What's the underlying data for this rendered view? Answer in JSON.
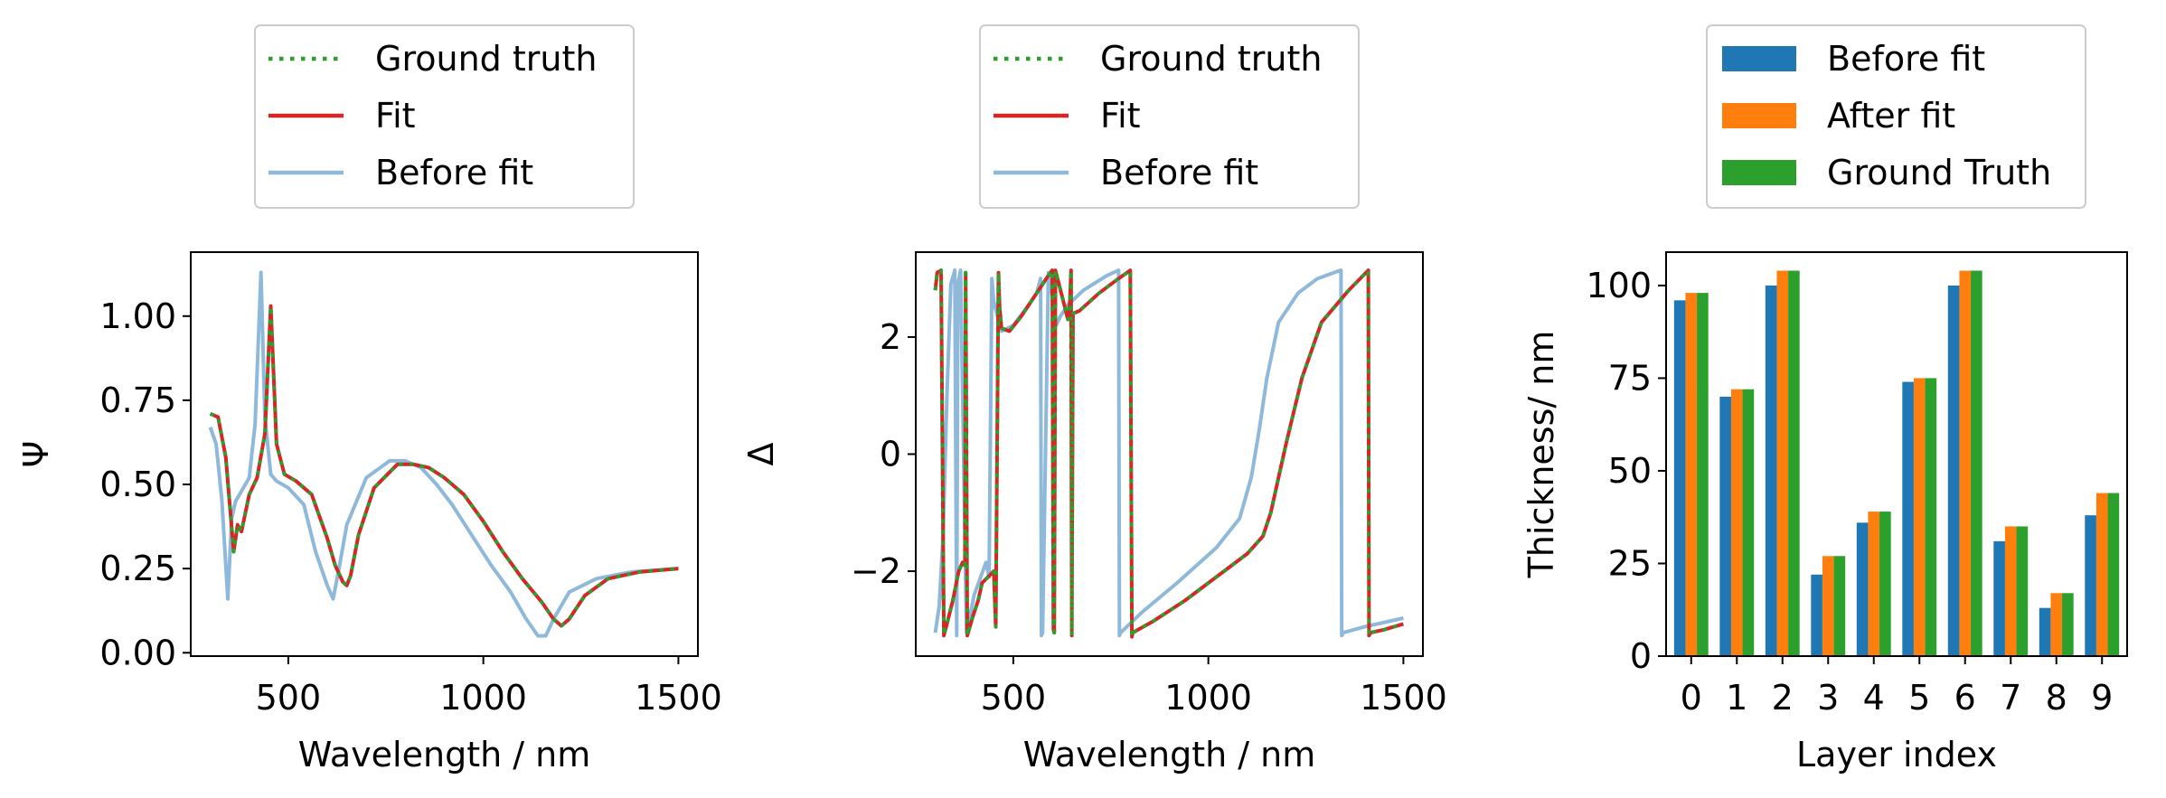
{
  "chart_data": [
    {
      "type": "line",
      "title": "",
      "xlabel": "Wavelength / nm",
      "ylabel": "Ψ",
      "xlim": [
        250,
        1550
      ],
      "ylim": [
        -0.01,
        1.19
      ],
      "xticks": [
        500,
        1000,
        1500
      ],
      "yticks": [
        0.0,
        0.25,
        0.5,
        0.75,
        1.0
      ],
      "ytick_labels": [
        "0.00",
        "0.25",
        "0.50",
        "0.75",
        "1.00"
      ],
      "legend": {
        "placement": "above",
        "entries": [
          "Ground truth",
          "Fit",
          "Before fit"
        ]
      },
      "series": [
        {
          "name": "Ground truth",
          "color": "#2ca02c",
          "style": "dotted",
          "x": [
            300,
            320,
            340,
            360,
            370,
            380,
            400,
            420,
            440,
            455,
            470,
            490,
            520,
            560,
            600,
            620,
            640,
            650,
            660,
            680,
            720,
            780,
            820,
            860,
            900,
            950,
            1000,
            1050,
            1100,
            1150,
            1180,
            1200,
            1220,
            1260,
            1320,
            1400,
            1500
          ],
          "y": [
            0.71,
            0.7,
            0.58,
            0.3,
            0.38,
            0.36,
            0.47,
            0.52,
            0.65,
            1.03,
            0.62,
            0.53,
            0.51,
            0.47,
            0.34,
            0.26,
            0.21,
            0.2,
            0.23,
            0.35,
            0.49,
            0.56,
            0.56,
            0.55,
            0.52,
            0.47,
            0.39,
            0.3,
            0.22,
            0.15,
            0.1,
            0.08,
            0.1,
            0.17,
            0.22,
            0.24,
            0.25
          ]
        },
        {
          "name": "Fit",
          "color": "#d62728",
          "style": "solid",
          "x": [
            300,
            320,
            340,
            360,
            370,
            380,
            400,
            420,
            440,
            455,
            470,
            490,
            520,
            560,
            600,
            620,
            640,
            650,
            660,
            680,
            720,
            780,
            820,
            860,
            900,
            950,
            1000,
            1050,
            1100,
            1150,
            1180,
            1200,
            1220,
            1260,
            1320,
            1400,
            1500
          ],
          "y": [
            0.71,
            0.7,
            0.58,
            0.3,
            0.38,
            0.36,
            0.47,
            0.52,
            0.65,
            1.03,
            0.62,
            0.53,
            0.51,
            0.47,
            0.34,
            0.26,
            0.21,
            0.2,
            0.23,
            0.35,
            0.49,
            0.56,
            0.56,
            0.55,
            0.52,
            0.47,
            0.39,
            0.3,
            0.22,
            0.15,
            0.1,
            0.08,
            0.1,
            0.17,
            0.22,
            0.24,
            0.25
          ]
        },
        {
          "name": "Before fit",
          "color": "#8fb9da",
          "style": "solid",
          "x": [
            300,
            315,
            330,
            345,
            355,
            365,
            380,
            400,
            415,
            430,
            440,
            455,
            470,
            500,
            540,
            570,
            600,
            615,
            630,
            650,
            700,
            760,
            800,
            840,
            880,
            920,
            970,
            1020,
            1070,
            1110,
            1140,
            1160,
            1180,
            1220,
            1290,
            1380,
            1500
          ],
          "y": [
            0.67,
            0.62,
            0.45,
            0.16,
            0.4,
            0.45,
            0.48,
            0.52,
            0.68,
            1.13,
            0.7,
            0.53,
            0.51,
            0.49,
            0.44,
            0.3,
            0.2,
            0.16,
            0.25,
            0.38,
            0.52,
            0.57,
            0.57,
            0.55,
            0.5,
            0.44,
            0.35,
            0.26,
            0.18,
            0.1,
            0.05,
            0.05,
            0.1,
            0.18,
            0.22,
            0.24,
            0.25
          ]
        }
      ]
    },
    {
      "type": "line",
      "title": "",
      "xlabel": "Wavelength / nm",
      "ylabel": "Δ",
      "xlim": [
        250,
        1550
      ],
      "ylim": [
        -3.45,
        3.45
      ],
      "xticks": [
        500,
        1000,
        1500
      ],
      "yticks": [
        -2,
        0,
        2
      ],
      "ytick_labels": [
        "−2",
        "0",
        "2"
      ],
      "legend": {
        "placement": "above",
        "entries": [
          "Ground truth",
          "Fit",
          "Before fit"
        ]
      },
      "series": [
        {
          "name": "Ground truth",
          "color": "#2ca02c",
          "style": "dotted",
          "x": [
            300,
            305,
            315,
            322,
            330,
            345,
            360,
            370,
            376,
            378,
            382,
            395,
            410,
            420,
            450,
            455,
            462,
            465,
            470,
            490,
            520,
            560,
            590,
            600,
            603,
            605,
            608,
            625,
            640,
            645,
            648,
            650,
            653,
            670,
            720,
            770,
            800,
            804,
            806,
            860,
            940,
            1040,
            1100,
            1140,
            1160,
            1180,
            1200,
            1240,
            1290,
            1360,
            1410,
            1412,
            1416,
            1450,
            1500
          ],
          "y": [
            2.8,
            3.1,
            3.14,
            -3.1,
            -2.9,
            -2.5,
            -2.0,
            -1.85,
            -1.9,
            3.1,
            -3.1,
            -2.8,
            -2.5,
            -2.2,
            -2.0,
            -2.95,
            3.1,
            2.5,
            2.15,
            2.1,
            2.35,
            2.75,
            3.05,
            3.14,
            -3.0,
            -3.05,
            3.14,
            2.7,
            2.3,
            2.6,
            3.14,
            -3.1,
            2.4,
            2.45,
            2.75,
            3.0,
            3.14,
            -3.12,
            -3.05,
            -2.85,
            -2.5,
            -2.0,
            -1.7,
            -1.4,
            -1.0,
            -0.4,
            0.2,
            1.3,
            2.25,
            2.8,
            3.14,
            -3.1,
            -3.05,
            -3.0,
            -2.9
          ]
        },
        {
          "name": "Fit",
          "color": "#d62728",
          "style": "solid",
          "x": [
            300,
            305,
            315,
            322,
            330,
            345,
            360,
            370,
            376,
            378,
            382,
            395,
            410,
            420,
            450,
            455,
            462,
            465,
            470,
            490,
            520,
            560,
            590,
            600,
            603,
            605,
            608,
            625,
            640,
            645,
            648,
            650,
            653,
            670,
            720,
            770,
            800,
            804,
            806,
            860,
            940,
            1040,
            1100,
            1140,
            1160,
            1180,
            1200,
            1240,
            1290,
            1360,
            1410,
            1412,
            1416,
            1450,
            1500
          ],
          "y": [
            2.8,
            3.1,
            3.14,
            -3.1,
            -2.9,
            -2.5,
            -2.0,
            -1.85,
            -1.9,
            3.1,
            -3.1,
            -2.8,
            -2.5,
            -2.2,
            -2.0,
            -2.95,
            3.1,
            2.5,
            2.15,
            2.1,
            2.35,
            2.75,
            3.05,
            3.14,
            -3.0,
            -3.05,
            3.14,
            2.7,
            2.3,
            2.6,
            3.14,
            -3.1,
            2.4,
            2.45,
            2.75,
            3.0,
            3.14,
            -3.12,
            -3.05,
            -2.85,
            -2.5,
            -2.0,
            -1.7,
            -1.4,
            -1.0,
            -0.4,
            0.2,
            1.3,
            2.25,
            2.8,
            3.14,
            -3.1,
            -3.05,
            -3.0,
            -2.9
          ]
        },
        {
          "name": "Before fit",
          "color": "#8fb9da",
          "style": "solid",
          "x": [
            300,
            310,
            320,
            330,
            340,
            350,
            355,
            358,
            365,
            380,
            400,
            430,
            438,
            445,
            450,
            470,
            500,
            540,
            560,
            570,
            572,
            575,
            590,
            600,
            605,
            610,
            620,
            640,
            680,
            740,
            770,
            772,
            775,
            830,
            920,
            1020,
            1080,
            1110,
            1130,
            1150,
            1180,
            1230,
            1280,
            1330,
            1340,
            1342,
            1346,
            1400,
            1500
          ],
          "y": [
            -3.05,
            -2.6,
            -1.4,
            1.0,
            2.9,
            3.14,
            -3.1,
            2.9,
            3.14,
            -3.05,
            -2.4,
            -1.85,
            -2.1,
            3.0,
            2.6,
            2.1,
            2.2,
            2.55,
            2.75,
            3.0,
            -3.1,
            -3.05,
            3.1,
            2.7,
            2.3,
            2.2,
            2.35,
            2.55,
            2.8,
            3.05,
            3.14,
            -3.1,
            -3.05,
            -2.7,
            -2.2,
            -1.6,
            -1.1,
            -0.4,
            0.4,
            1.3,
            2.25,
            2.75,
            3.0,
            3.12,
            3.14,
            -3.1,
            -3.05,
            -2.95,
            -2.8
          ]
        }
      ]
    },
    {
      "type": "bar",
      "title": "",
      "xlabel": "Layer index",
      "ylabel": "Thickness/ nm",
      "ylim": [
        0,
        109
      ],
      "yticks": [
        0,
        25,
        50,
        75,
        100
      ],
      "categories": [
        "0",
        "1",
        "2",
        "3",
        "4",
        "5",
        "6",
        "7",
        "8",
        "9"
      ],
      "legend": {
        "placement": "above",
        "entries": [
          "Before fit",
          "After fit",
          "Ground Truth"
        ]
      },
      "series": [
        {
          "name": "Before fit",
          "color": "#1f77b4",
          "values": [
            96,
            70,
            100,
            22,
            36,
            74,
            100,
            31,
            13,
            38
          ]
        },
        {
          "name": "After fit",
          "color": "#ff7f0e",
          "values": [
            98,
            72,
            104,
            27,
            39,
            75,
            104,
            35,
            17,
            44
          ]
        },
        {
          "name": "Ground Truth",
          "color": "#2ca02c",
          "values": [
            98,
            72,
            104,
            27,
            39,
            75,
            104,
            35,
            17,
            44
          ]
        }
      ]
    }
  ]
}
